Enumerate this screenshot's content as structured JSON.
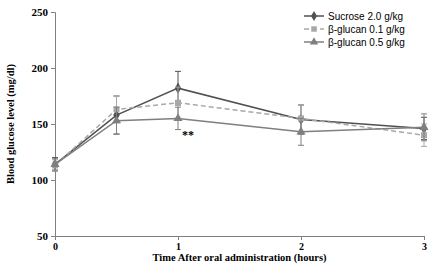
{
  "chart_data": {
    "type": "line",
    "x_label": "Time After oral administration (hours)",
    "y_label": "Blood glucose level (mg/dl)",
    "x": [
      0,
      0.5,
      1,
      2,
      3
    ],
    "series": [
      {
        "name": "Sucrose 2.0 g/kg",
        "color": "#505050",
        "marker": "diamond",
        "line_style": "solid",
        "values": [
          114,
          158,
          182,
          154,
          146
        ],
        "errors": [
          6,
          17,
          15,
          13,
          10
        ]
      },
      {
        "name": "β-glucan 0.1 g/kg",
        "color": "#a8a8a8",
        "marker": "square",
        "line_style": "dashed",
        "values": [
          113,
          163,
          169,
          155,
          140
        ],
        "errors": [
          5,
          12,
          14,
          12,
          10
        ]
      },
      {
        "name": "β-glucan 0.5 g/kg",
        "color": "#7f7f7f",
        "marker": "triangle",
        "line_style": "solid",
        "values": [
          114,
          153,
          155,
          143,
          147
        ],
        "errors": [
          5,
          12,
          10,
          12,
          12
        ]
      }
    ],
    "annotations": [
      {
        "text": "**",
        "x": 1,
        "y": 140
      }
    ],
    "xlim": [
      0,
      3
    ],
    "xticks": [
      0,
      1,
      2,
      3
    ],
    "ylim": [
      50,
      250
    ],
    "yticks": [
      50,
      100,
      150,
      200,
      250
    ],
    "grid": false,
    "legend": "upper right"
  }
}
